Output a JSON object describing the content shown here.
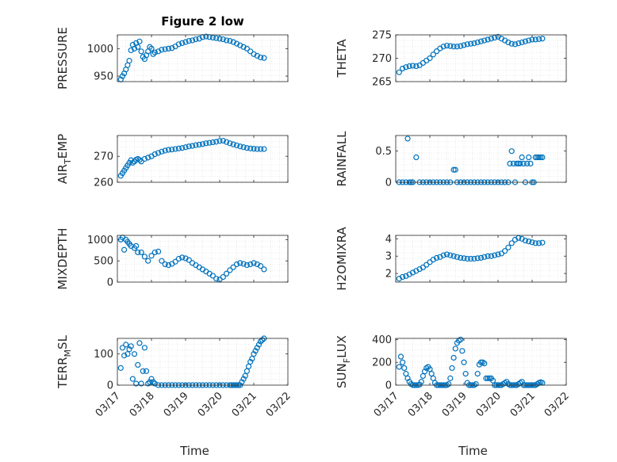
{
  "figure": {
    "title": "Figure 2 low"
  },
  "style": {
    "marker_color": "#0072bd",
    "grid_color": "#d9d9d9"
  },
  "chart_data": [
    {
      "type": "scatter",
      "id": "pressure",
      "title": "Figure 2 low",
      "ylabel": {
        "main": "PRESSURE",
        "sub": ""
      },
      "xlabel": "",
      "xlim": [
        0,
        5
      ],
      "ylim": [
        940,
        1025
      ],
      "yticks": [
        950,
        1000
      ],
      "xticks": [],
      "grid": true,
      "series": [
        {
          "x": [
            0.1,
            0.15,
            0.2,
            0.25,
            0.3,
            0.35,
            0.4,
            0.45,
            0.5,
            0.55,
            0.6,
            0.65,
            0.7,
            0.75,
            0.8,
            0.85,
            0.9,
            0.95,
            1.0,
            1.05,
            1.1,
            1.2,
            1.3,
            1.4,
            1.5,
            1.6,
            1.7,
            1.8,
            1.9,
            2.0,
            2.1,
            2.2,
            2.3,
            2.4,
            2.5,
            2.6,
            2.7,
            2.8,
            2.9,
            3.0,
            3.1,
            3.2,
            3.3,
            3.4,
            3.5,
            3.6,
            3.7,
            3.8,
            3.9,
            4.0,
            4.1,
            4.2,
            4.3
          ],
          "y": [
            944,
            950,
            955,
            962,
            970,
            978,
            997,
            1007,
            1000,
            1010,
            1003,
            1013,
            995,
            985,
            981,
            988,
            995,
            1003,
            1000,
            990,
            993,
            995,
            998,
            999,
            1000,
            1001,
            1004,
            1008,
            1010,
            1012,
            1014,
            1015,
            1017,
            1018,
            1021,
            1022,
            1021,
            1020,
            1019,
            1018,
            1017,
            1015,
            1014,
            1012,
            1009,
            1006,
            1003,
            1000,
            995,
            990,
            987,
            984,
            983
          ]
        }
      ]
    },
    {
      "type": "scatter",
      "id": "theta",
      "ylabel": {
        "main": "THETA",
        "sub": ""
      },
      "xlabel": "",
      "xlim": [
        0,
        5
      ],
      "ylim": [
        265,
        275
      ],
      "yticks": [
        265,
        270,
        275
      ],
      "xticks": [],
      "grid": true,
      "series": [
        {
          "x": [
            0.1,
            0.2,
            0.3,
            0.4,
            0.5,
            0.6,
            0.7,
            0.8,
            0.9,
            1.0,
            1.1,
            1.2,
            1.3,
            1.4,
            1.5,
            1.6,
            1.7,
            1.8,
            1.9,
            2.0,
            2.1,
            2.2,
            2.3,
            2.4,
            2.5,
            2.6,
            2.7,
            2.8,
            2.9,
            3.0,
            3.1,
            3.2,
            3.3,
            3.4,
            3.5,
            3.6,
            3.7,
            3.8,
            3.9,
            4.0,
            4.1,
            4.2,
            4.3
          ],
          "y": [
            267,
            267.8,
            268.1,
            268.3,
            268.4,
            268.3,
            268.5,
            269,
            269.5,
            270,
            270.8,
            271.5,
            272.1,
            272.5,
            272.7,
            272.6,
            272.5,
            272.5,
            272.6,
            272.8,
            273,
            273.1,
            273.2,
            273.4,
            273.6,
            273.8,
            274,
            274.2,
            274.4,
            274.6,
            274.2,
            273.8,
            273.4,
            273.1,
            273,
            273.2,
            273.4,
            273.6,
            273.8,
            274,
            274,
            274.1,
            274.2
          ]
        }
      ]
    },
    {
      "type": "scatter",
      "id": "air_temp",
      "ylabel": {
        "main": "AIR",
        "sub": "T",
        "rest": "EMP"
      },
      "xlabel": "",
      "xlim": [
        0,
        5
      ],
      "ylim": [
        260,
        278
      ],
      "yticks": [
        260,
        270
      ],
      "xticks": [],
      "grid": true,
      "series": [
        {
          "x": [
            0.1,
            0.15,
            0.2,
            0.25,
            0.3,
            0.35,
            0.4,
            0.45,
            0.5,
            0.55,
            0.6,
            0.65,
            0.7,
            0.8,
            0.9,
            1.0,
            1.1,
            1.2,
            1.3,
            1.4,
            1.5,
            1.6,
            1.7,
            1.8,
            1.9,
            2.0,
            2.1,
            2.2,
            2.3,
            2.4,
            2.5,
            2.6,
            2.7,
            2.8,
            2.9,
            3.0,
            3.1,
            3.2,
            3.3,
            3.4,
            3.5,
            3.6,
            3.7,
            3.8,
            3.9,
            4.0,
            4.1,
            4.2,
            4.3
          ],
          "y": [
            262.5,
            263.5,
            264.5,
            265.5,
            266.5,
            267.5,
            268.5,
            267.5,
            268,
            268.7,
            269,
            268.6,
            268,
            269,
            269.5,
            270,
            270.8,
            271.3,
            271.8,
            272.2,
            272.5,
            272.6,
            272.8,
            273,
            273.2,
            273.5,
            273.8,
            274,
            274.3,
            274.5,
            274.7,
            275,
            275.2,
            275.4,
            275.6,
            275.9,
            276,
            275.5,
            275,
            274.6,
            274.2,
            273.8,
            273.5,
            273.2,
            273,
            272.9,
            272.8,
            272.8,
            272.8
          ]
        }
      ]
    },
    {
      "type": "scatter",
      "id": "rainfall",
      "ylabel": {
        "main": "RAINFALL",
        "sub": ""
      },
      "xlabel": "",
      "xlim": [
        0,
        5
      ],
      "ylim": [
        0,
        0.75
      ],
      "yticks": [
        0,
        0.5
      ],
      "xticks": [],
      "grid": true,
      "series": [
        {
          "x": [
            0.1,
            0.2,
            0.3,
            0.35,
            0.4,
            0.45,
            0.5,
            0.6,
            0.7,
            0.8,
            0.9,
            1.0,
            1.1,
            1.2,
            1.3,
            1.4,
            1.5,
            1.6,
            1.7,
            1.75,
            1.8,
            1.9,
            2.0,
            2.1,
            2.2,
            2.3,
            2.4,
            2.5,
            2.6,
            2.7,
            2.8,
            2.9,
            3.0,
            3.1,
            3.2,
            3.3,
            3.35,
            3.4,
            3.45,
            3.5,
            3.55,
            3.6,
            3.65,
            3.7,
            3.75,
            3.8,
            3.85,
            3.9,
            3.95,
            4.0,
            4.05,
            4.1,
            4.15,
            4.2,
            4.25,
            4.3
          ],
          "y": [
            0,
            0,
            0,
            0.7,
            0,
            0,
            0,
            0.4,
            0,
            0,
            0,
            0,
            0,
            0,
            0,
            0,
            0,
            0,
            0.2,
            0.2,
            0,
            0,
            0,
            0,
            0,
            0,
            0,
            0,
            0,
            0,
            0,
            0,
            0,
            0,
            0,
            0,
            0.3,
            0.5,
            0.3,
            0,
            0.3,
            0.3,
            0.3,
            0.4,
            0.3,
            0,
            0.3,
            0.4,
            0.3,
            0,
            0,
            0.4,
            0.4,
            0.4,
            0.4,
            0.4
          ]
        }
      ]
    },
    {
      "type": "scatter",
      "id": "mixdepth",
      "ylabel": {
        "main": "MIXDEPTH",
        "sub": ""
      },
      "xlabel": "",
      "xlim": [
        0,
        5
      ],
      "ylim": [
        0,
        1100
      ],
      "yticks": [
        0,
        500,
        1000
      ],
      "xticks": [],
      "grid": true,
      "series": [
        {
          "x": [
            0.1,
            0.15,
            0.2,
            0.25,
            0.3,
            0.35,
            0.4,
            0.5,
            0.55,
            0.6,
            0.7,
            0.8,
            0.9,
            1.0,
            1.1,
            1.2,
            1.3,
            1.4,
            1.5,
            1.6,
            1.7,
            1.8,
            1.9,
            2.0,
            2.1,
            2.2,
            2.3,
            2.4,
            2.5,
            2.6,
            2.7,
            2.8,
            2.9,
            3.0,
            3.1,
            3.2,
            3.3,
            3.4,
            3.5,
            3.6,
            3.7,
            3.8,
            3.9,
            4.0,
            4.1,
            4.2,
            4.3
          ],
          "y": [
            1000,
            1050,
            760,
            1000,
            950,
            900,
            850,
            800,
            850,
            700,
            700,
            600,
            500,
            620,
            700,
            720,
            500,
            420,
            400,
            430,
            480,
            550,
            580,
            560,
            520,
            450,
            400,
            350,
            300,
            250,
            200,
            150,
            80,
            60,
            120,
            200,
            280,
            350,
            420,
            450,
            430,
            400,
            420,
            450,
            420,
            380,
            300
          ]
        }
      ]
    },
    {
      "type": "scatter",
      "id": "h2omixra",
      "ylabel": {
        "main": "H2OMIXRA",
        "sub": ""
      },
      "xlabel": "",
      "xlim": [
        0,
        5
      ],
      "ylim": [
        1.5,
        4.2
      ],
      "yticks": [
        2,
        3,
        4
      ],
      "xticks": [],
      "grid": true,
      "series": [
        {
          "x": [
            0.1,
            0.2,
            0.3,
            0.4,
            0.5,
            0.6,
            0.7,
            0.8,
            0.9,
            1.0,
            1.1,
            1.2,
            1.3,
            1.4,
            1.5,
            1.6,
            1.7,
            1.8,
            1.9,
            2.0,
            2.1,
            2.2,
            2.3,
            2.4,
            2.5,
            2.6,
            2.7,
            2.8,
            2.9,
            3.0,
            3.1,
            3.2,
            3.3,
            3.4,
            3.5,
            3.6,
            3.7,
            3.8,
            3.9,
            4.0,
            4.1,
            4.2,
            4.3
          ],
          "y": [
            1.7,
            1.8,
            1.85,
            1.95,
            2.05,
            2.15,
            2.25,
            2.35,
            2.5,
            2.65,
            2.8,
            2.9,
            2.95,
            3.05,
            3.1,
            3.05,
            3.0,
            2.95,
            2.9,
            2.88,
            2.85,
            2.85,
            2.85,
            2.88,
            2.9,
            2.95,
            3.0,
            3.0,
            3.05,
            3.1,
            3.15,
            3.3,
            3.5,
            3.75,
            3.95,
            4.05,
            4.0,
            3.9,
            3.85,
            3.8,
            3.75,
            3.75,
            3.78
          ]
        }
      ]
    },
    {
      "type": "scatter",
      "id": "terr_msl",
      "ylabel": {
        "main": "TERR",
        "sub": "M",
        "rest": "SL"
      },
      "xlabel": "Time",
      "xlim": [
        0,
        5
      ],
      "ylim": [
        0,
        150
      ],
      "yticks": [
        0,
        100
      ],
      "xticks": [
        0,
        1,
        2,
        3,
        4,
        5
      ],
      "xticklabels": [
        "03/17",
        "03/18",
        "03/19",
        "03/20",
        "03/21",
        "03/22"
      ],
      "grid": true,
      "series": [
        {
          "x": [
            0.1,
            0.15,
            0.2,
            0.25,
            0.3,
            0.35,
            0.4,
            0.45,
            0.5,
            0.55,
            0.6,
            0.65,
            0.7,
            0.75,
            0.8,
            0.85,
            0.9,
            0.95,
            1.0,
            1.05,
            1.1,
            1.2,
            1.3,
            1.4,
            1.5,
            1.6,
            1.7,
            1.8,
            1.9,
            2.0,
            2.1,
            2.2,
            2.3,
            2.4,
            2.5,
            2.6,
            2.7,
            2.8,
            2.9,
            3.0,
            3.1,
            3.2,
            3.3,
            3.35,
            3.4,
            3.45,
            3.5,
            3.55,
            3.6,
            3.65,
            3.7,
            3.75,
            3.8,
            3.85,
            3.9,
            3.95,
            4.0,
            4.05,
            4.1,
            4.15,
            4.2,
            4.25,
            4.3
          ],
          "y": [
            55,
            120,
            95,
            130,
            100,
            115,
            125,
            20,
            100,
            5,
            65,
            135,
            5,
            45,
            120,
            45,
            5,
            10,
            20,
            10,
            5,
            0,
            0,
            0,
            0,
            0,
            0,
            0,
            0,
            0,
            0,
            0,
            0,
            0,
            0,
            0,
            0,
            0,
            0,
            0,
            0,
            0,
            0,
            0,
            0,
            0,
            0,
            0,
            0,
            10,
            20,
            30,
            45,
            60,
            75,
            85,
            100,
            110,
            120,
            130,
            140,
            145,
            150
          ]
        }
      ]
    },
    {
      "type": "scatter",
      "id": "sun_flux",
      "ylabel": {
        "main": "SUN",
        "sub": "F",
        "rest": "LUX"
      },
      "xlabel": "Time",
      "xlim": [
        0,
        5
      ],
      "ylim": [
        0,
        410
      ],
      "yticks": [
        0,
        200,
        400
      ],
      "xticks": [
        0,
        1,
        2,
        3,
        4,
        5
      ],
      "xticklabels": [
        "03/17",
        "03/18",
        "03/19",
        "03/20",
        "03/21",
        "03/22"
      ],
      "grid": true,
      "series": [
        {
          "x": [
            0.1,
            0.15,
            0.2,
            0.25,
            0.3,
            0.35,
            0.4,
            0.45,
            0.5,
            0.55,
            0.6,
            0.65,
            0.7,
            0.75,
            0.8,
            0.85,
            0.9,
            0.95,
            1.0,
            1.05,
            1.1,
            1.15,
            1.2,
            1.25,
            1.3,
            1.35,
            1.4,
            1.45,
            1.5,
            1.55,
            1.6,
            1.65,
            1.7,
            1.75,
            1.8,
            1.85,
            1.9,
            1.95,
            2.0,
            2.05,
            2.1,
            2.15,
            2.2,
            2.25,
            2.3,
            2.35,
            2.4,
            2.45,
            2.5,
            2.55,
            2.6,
            2.65,
            2.7,
            2.75,
            2.8,
            2.85,
            2.9,
            2.95,
            3.0,
            3.05,
            3.1,
            3.15,
            3.2,
            3.25,
            3.3,
            3.35,
            3.4,
            3.45,
            3.5,
            3.55,
            3.6,
            3.65,
            3.7,
            3.75,
            3.8,
            3.85,
            3.9,
            3.95,
            4.0,
            4.05,
            4.1,
            4.15,
            4.2,
            4.25,
            4.3
          ],
          "y": [
            160,
            250,
            200,
            150,
            100,
            60,
            30,
            10,
            0,
            0,
            0,
            0,
            5,
            30,
            80,
            120,
            150,
            160,
            140,
            100,
            60,
            20,
            0,
            0,
            0,
            0,
            0,
            0,
            0,
            10,
            60,
            150,
            240,
            320,
            370,
            390,
            400,
            300,
            200,
            100,
            20,
            0,
            0,
            0,
            0,
            10,
            100,
            180,
            200,
            200,
            190,
            60,
            60,
            60,
            60,
            40,
            0,
            0,
            0,
            0,
            0,
            10,
            20,
            30,
            10,
            0,
            0,
            0,
            0,
            0,
            10,
            20,
            30,
            0,
            0,
            0,
            0,
            0,
            0,
            0,
            0,
            10,
            20,
            25,
            20
          ]
        }
      ]
    }
  ]
}
